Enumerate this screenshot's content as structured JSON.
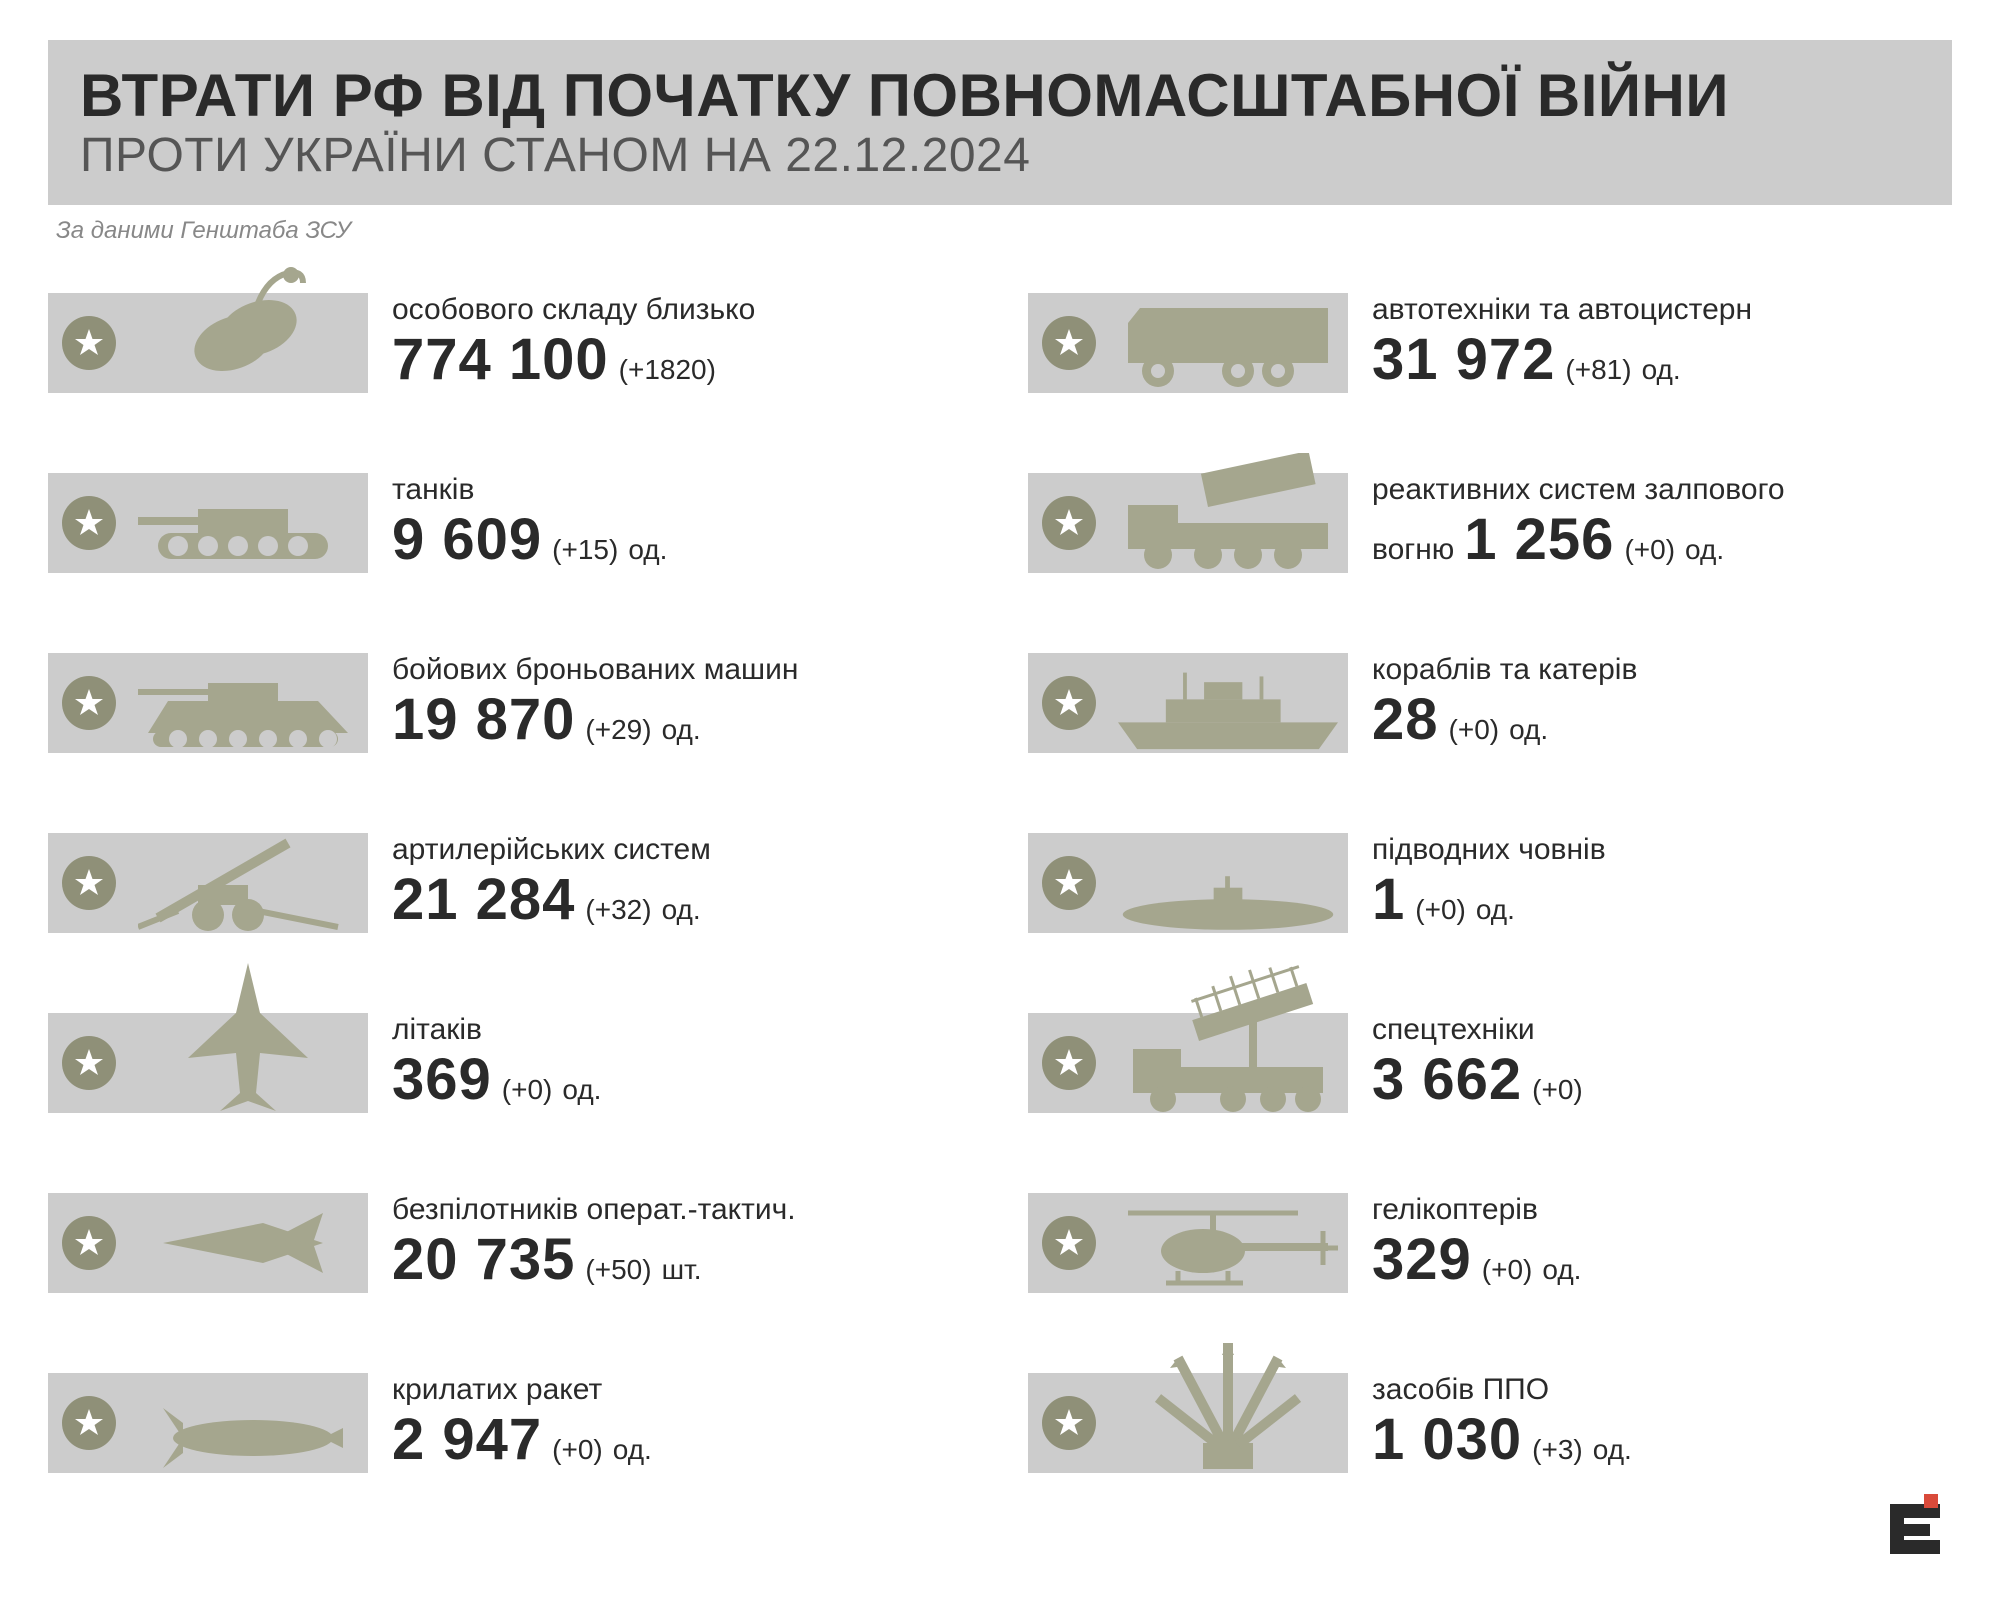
{
  "colors": {
    "background": "#ffffff",
    "header_bg": "#cccccc",
    "row_bg": "#cccccc",
    "badge_bg": "#8f9078",
    "silhouette": "#a5a68e",
    "title": "#2a2a2a",
    "subtitle": "#555555",
    "source": "#888888",
    "text": "#2a2a2a",
    "logo_red": "#d94a3a"
  },
  "typography": {
    "title_fontsize": 60,
    "subtitle_fontsize": 48,
    "source_fontsize": 24,
    "label_fontsize": 30,
    "value_fontsize": 58,
    "delta_fontsize": 28
  },
  "header": {
    "title": "ВТРАТИ РФ ВІД ПОЧАТКУ ПОВНОМАСШТАБНОЇ ВІЙНИ",
    "subtitle": "ПРОТИ УКРАЇНИ СТАНОМ НА 22.12.2024"
  },
  "source": "За даними Генштаба ЗСУ",
  "left": [
    {
      "icon": "dogtag",
      "label": "особового складу близько",
      "value": "774 100",
      "delta": "(+1820)",
      "unit": ""
    },
    {
      "icon": "tank",
      "label": "танків",
      "value": "9 609",
      "delta": "(+15)",
      "unit": "од."
    },
    {
      "icon": "apc",
      "label": "бойових броньованих машин",
      "value": "19 870",
      "delta": "(+29)",
      "unit": "од."
    },
    {
      "icon": "artillery",
      "label": "артилерійських систем",
      "value": "21 284",
      "delta": "(+32)",
      "unit": "од."
    },
    {
      "icon": "jet",
      "label": "літаків",
      "value": "369",
      "delta": "(+0)",
      "unit": "од."
    },
    {
      "icon": "drone",
      "label": "безпілотників операт.-тактич.",
      "value": "20 735",
      "delta": "(+50)",
      "unit": "шт."
    },
    {
      "icon": "missile",
      "label": "крилатих ракет",
      "value": "2 947",
      "delta": "(+0)",
      "unit": "од."
    }
  ],
  "right": [
    {
      "icon": "truck",
      "label": "автотехніки та автоцистерн",
      "value": "31 972",
      "delta": "(+81)",
      "unit": "од."
    },
    {
      "icon": "mlrs",
      "label": "реактивних систем залпового",
      "label2": "вогню",
      "value": "1 256",
      "delta": "(+0)",
      "unit": "од."
    },
    {
      "icon": "ship",
      "label": "кораблів та катерів",
      "value": "28",
      "delta": "(+0)",
      "unit": "од."
    },
    {
      "icon": "submarine",
      "label": "підводних човнів",
      "value": "1",
      "delta": "(+0)",
      "unit": "од."
    },
    {
      "icon": "radar",
      "label": "спецтехніки",
      "value": "3 662",
      "delta": "(+0)",
      "unit": ""
    },
    {
      "icon": "helicopter",
      "label": "гелікоптерів",
      "value": "329",
      "delta": "(+0)",
      "unit": "од."
    },
    {
      "icon": "aa",
      "label": "засобів ППО",
      "value": "1 030",
      "delta": "(+3)",
      "unit": "од."
    }
  ]
}
